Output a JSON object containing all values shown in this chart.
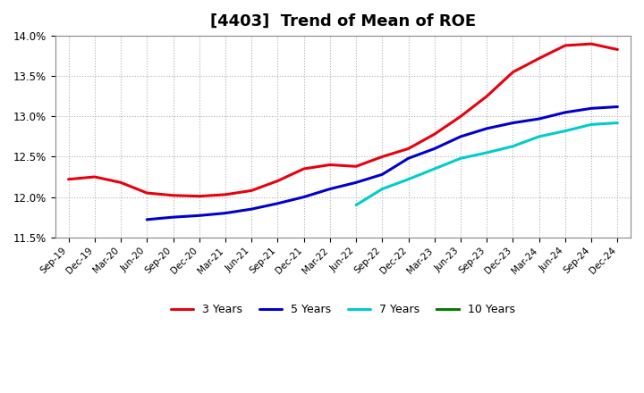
{
  "title": "[4403]  Trend of Mean of ROE",
  "ylim": [
    11.5,
    14.0
  ],
  "yticks": [
    11.5,
    12.0,
    12.5,
    13.0,
    13.5,
    14.0
  ],
  "x_labels": [
    "Sep-19",
    "Dec-19",
    "Mar-20",
    "Jun-20",
    "Sep-20",
    "Dec-20",
    "Mar-21",
    "Jun-21",
    "Sep-21",
    "Dec-21",
    "Mar-22",
    "Jun-22",
    "Sep-22",
    "Dec-22",
    "Mar-23",
    "Jun-23",
    "Sep-23",
    "Dec-23",
    "Mar-24",
    "Jun-24",
    "Sep-24",
    "Dec-24"
  ],
  "series_3y": [
    12.22,
    12.25,
    12.18,
    12.05,
    12.02,
    12.01,
    12.03,
    12.08,
    12.2,
    12.35,
    12.4,
    12.38,
    12.5,
    12.6,
    12.78,
    13.0,
    13.25,
    13.55,
    13.72,
    13.88,
    13.9,
    13.83
  ],
  "series_5y": [
    null,
    null,
    null,
    11.72,
    11.75,
    11.77,
    11.8,
    11.85,
    11.92,
    12.0,
    12.1,
    12.18,
    12.28,
    12.48,
    12.6,
    12.75,
    12.85,
    12.92,
    12.97,
    13.05,
    13.1,
    13.12
  ],
  "series_7y": [
    null,
    null,
    null,
    null,
    null,
    null,
    null,
    null,
    null,
    null,
    null,
    11.9,
    12.1,
    12.22,
    12.35,
    12.48,
    12.55,
    12.63,
    12.75,
    12.82,
    12.9,
    12.92
  ],
  "series_10y": [
    null,
    null,
    null,
    null,
    null,
    null,
    null,
    null,
    null,
    null,
    null,
    null,
    null,
    null,
    null,
    null,
    null,
    null,
    null,
    null,
    null,
    null
  ],
  "color_3y": "#e8000d",
  "color_5y": "#0000cd",
  "color_7y": "#00cccc",
  "color_10y": "#008000",
  "bg_color": "#ffffff",
  "plot_bg_color": "#ffffff",
  "grid_color": "#b0b0b0",
  "title_fontsize": 13,
  "legend_labels": [
    "3 Years",
    "5 Years",
    "7 Years",
    "10 Years"
  ]
}
